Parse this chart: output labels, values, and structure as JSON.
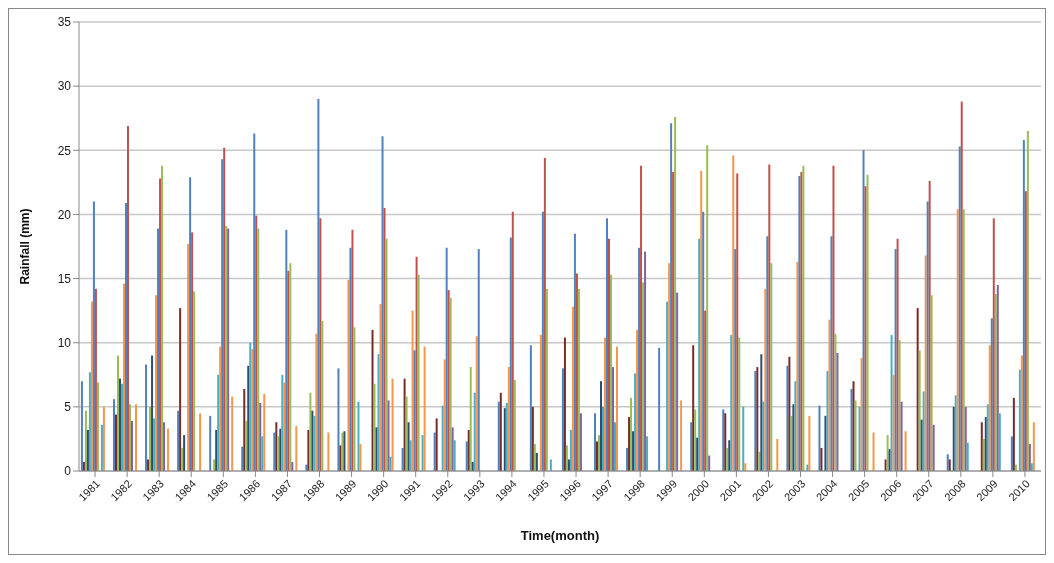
{
  "chart_data": {
    "type": "bar",
    "xlabel": "Time(month)",
    "ylabel": "Rainfall (mm)",
    "categories": [
      "1981",
      "1982",
      "1983",
      "1984",
      "1985",
      "1986",
      "1987",
      "1988",
      "1989",
      "1990",
      "1991",
      "1992",
      "1993",
      "1994",
      "1995",
      "1996",
      "1997",
      "1998",
      "1999",
      "2000",
      "2001",
      "2002",
      "2003",
      "2004",
      "2005",
      "2006",
      "2007",
      "2008",
      "2009",
      "2010"
    ],
    "series": [
      {
        "color": "#4f81bd",
        "values": [
          7.0,
          5.6,
          8.3,
          4.7,
          4.3,
          1.9,
          3.0,
          0.5,
          8.0,
          0,
          1.8,
          3.0,
          2.3,
          5.4,
          9.8,
          8.0,
          4.5,
          1.8,
          9.6,
          3.8,
          4.8,
          7.8,
          8.2,
          5.1,
          6.4,
          0,
          0,
          1.3,
          0,
          2.7
        ]
      },
      {
        "color": "#772c2a",
        "values": [
          0.7,
          4.4,
          0.9,
          12.7,
          0,
          6.4,
          3.8,
          3.2,
          2.0,
          11.0,
          7.2,
          4.1,
          3.2,
          6.1,
          5.0,
          10.4,
          2.3,
          4.2,
          0,
          9.8,
          4.5,
          8.1,
          8.9,
          1.8,
          7.0,
          0.9,
          12.7,
          0.9,
          3.8,
          5.7
        ]
      },
      {
        "color": "#9bbb59",
        "values": [
          4.7,
          9.0,
          5.0,
          1.8,
          0.9,
          3.9,
          2.7,
          6.1,
          3.0,
          6.8,
          5.8,
          0,
          8.1,
          0,
          2.1,
          2.0,
          2.8,
          5.7,
          0,
          4.8,
          1.8,
          1.5,
          4.3,
          0,
          5.5,
          2.8,
          9.4,
          0,
          2.5,
          0.5
        ]
      },
      {
        "color": "#2c4d75",
        "values": [
          3.2,
          7.2,
          9.0,
          2.8,
          3.2,
          8.2,
          3.3,
          4.7,
          3.1,
          3.4,
          3.8,
          0,
          0.7,
          4.9,
          1.4,
          0.9,
          7.0,
          3.1,
          0,
          2.6,
          2.4,
          9.1,
          5.2,
          4.3,
          0,
          1.7,
          4.0,
          5.0,
          4.2,
          0
        ]
      },
      {
        "color": "#4bacc6",
        "values": [
          7.7,
          6.8,
          4.1,
          0,
          7.5,
          10.0,
          7.5,
          4.3,
          0,
          9.1,
          2.4,
          5.1,
          6.1,
          5.3,
          0,
          3.2,
          5.0,
          7.6,
          13.2,
          18.1,
          10.6,
          5.4,
          7.0,
          7.8,
          5.0,
          10.6,
          6.2,
          5.9,
          5.2,
          7.9
        ]
      },
      {
        "color": "#f79646",
        "values": [
          13.2,
          14.6,
          13.7,
          17.7,
          9.7,
          9.5,
          6.9,
          10.7,
          14.9,
          13.0,
          12.5,
          8.7,
          10.5,
          8.1,
          10.6,
          12.8,
          10.4,
          11.0,
          16.2,
          23.4,
          24.6,
          14.2,
          16.3,
          11.8,
          8.8,
          7.5,
          16.8,
          20.4,
          9.8,
          9.0
        ]
      },
      {
        "color": "#4f81bd",
        "values": [
          21.0,
          20.9,
          18.9,
          22.9,
          24.3,
          26.3,
          18.8,
          29.0,
          17.4,
          26.1,
          9.4,
          17.4,
          17.3,
          18.2,
          20.2,
          18.5,
          19.7,
          17.4,
          27.1,
          20.2,
          17.3,
          18.3,
          23.0,
          18.3,
          25.0,
          17.3,
          21.0,
          25.3,
          11.9,
          25.8
        ]
      },
      {
        "color": "#c0504d",
        "values": [
          14.2,
          26.9,
          22.8,
          18.6,
          25.2,
          19.9,
          15.6,
          19.7,
          18.8,
          20.5,
          16.7,
          14.1,
          0,
          20.2,
          24.4,
          15.4,
          18.1,
          23.8,
          23.3,
          12.5,
          23.2,
          23.9,
          23.3,
          23.8,
          22.2,
          18.1,
          22.6,
          28.8,
          19.7,
          21.8
        ]
      },
      {
        "color": "#9bbb59",
        "values": [
          6.9,
          5.2,
          23.8,
          14.0,
          19.1,
          18.9,
          16.2,
          11.7,
          11.2,
          18.1,
          15.3,
          13.5,
          0,
          7.1,
          14.2,
          14.2,
          15.3,
          14.7,
          27.6,
          25.4,
          10.4,
          16.2,
          23.8,
          10.7,
          23.1,
          10.2,
          13.7,
          20.4,
          13.8,
          26.5
        ]
      },
      {
        "color": "#8064a2",
        "values": [
          0,
          3.9,
          3.8,
          0,
          18.9,
          5.3,
          0.7,
          0,
          0,
          5.5,
          0,
          3.4,
          0,
          0,
          0,
          4.5,
          8.1,
          17.1,
          13.9,
          1.2,
          0,
          0,
          0,
          9.2,
          0,
          5.4,
          3.6,
          5.0,
          14.5,
          2.1
        ]
      },
      {
        "color": "#4bacc6",
        "values": [
          3.6,
          0,
          0,
          0,
          0,
          2.7,
          0,
          0,
          5.4,
          1.1,
          2.8,
          2.4,
          0,
          0,
          0.9,
          0,
          3.8,
          2.7,
          0,
          0,
          5.0,
          0,
          0.5,
          0,
          0,
          0,
          0,
          2.2,
          4.5,
          0.6
        ]
      },
      {
        "color": "#f79646",
        "values": [
          5.0,
          5.2,
          3.3,
          4.5,
          5.8,
          6.0,
          3.5,
          3.0,
          2.1,
          7.2,
          9.7,
          0,
          0,
          0,
          0,
          0,
          9.7,
          0,
          5.5,
          0,
          0.6,
          2.5,
          4.3,
          0,
          3.0,
          3.1,
          0,
          0,
          0,
          3.8
        ]
      }
    ],
    "ylim": [
      0,
      35
    ],
    "yticks": [
      0,
      5,
      10,
      15,
      20,
      25,
      30,
      35
    ],
    "grid": "y"
  }
}
